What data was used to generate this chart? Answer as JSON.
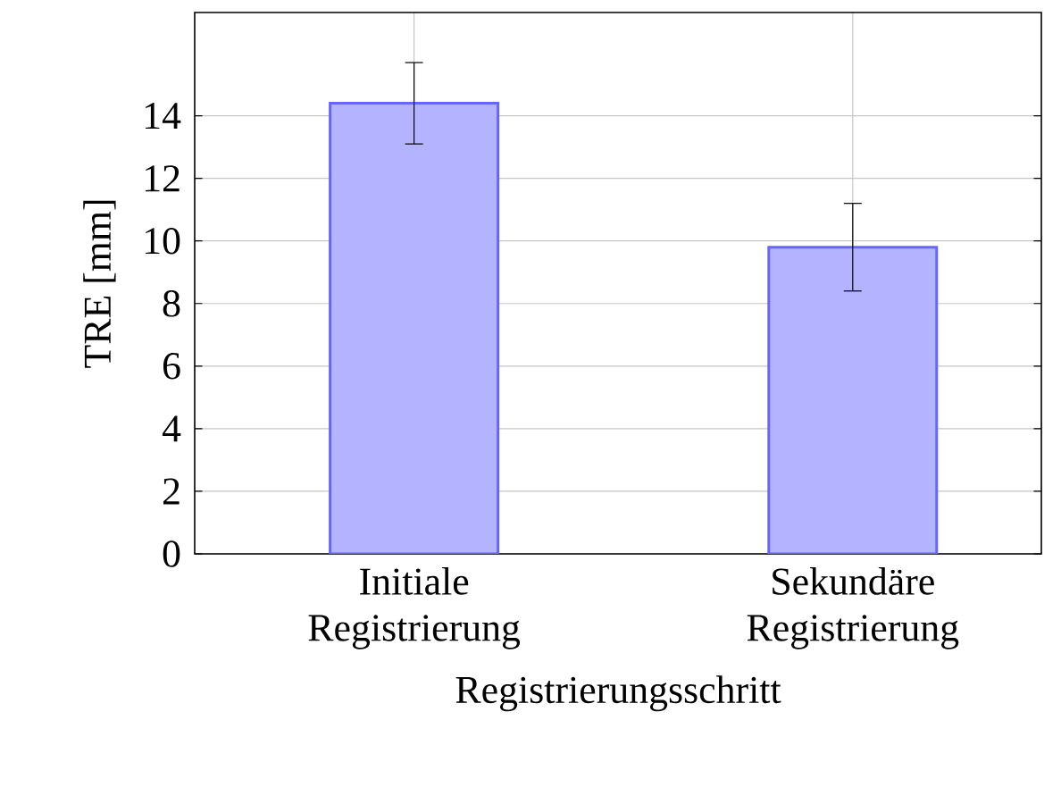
{
  "chart_data": {
    "type": "bar",
    "xlabel": "Registrierungsschritt",
    "ylabel": "TRE [mm]",
    "categories": [
      "Initiale Registrierung",
      "Sekundäre Registrierung"
    ],
    "values": [
      14.4,
      9.8
    ],
    "errors": [
      1.3,
      1.4
    ],
    "color": "#b3b3ff",
    "ylim": [
      0,
      17.3
    ],
    "yticks": [
      0,
      2,
      4,
      6,
      8,
      10,
      12,
      14
    ],
    "grid": true
  }
}
